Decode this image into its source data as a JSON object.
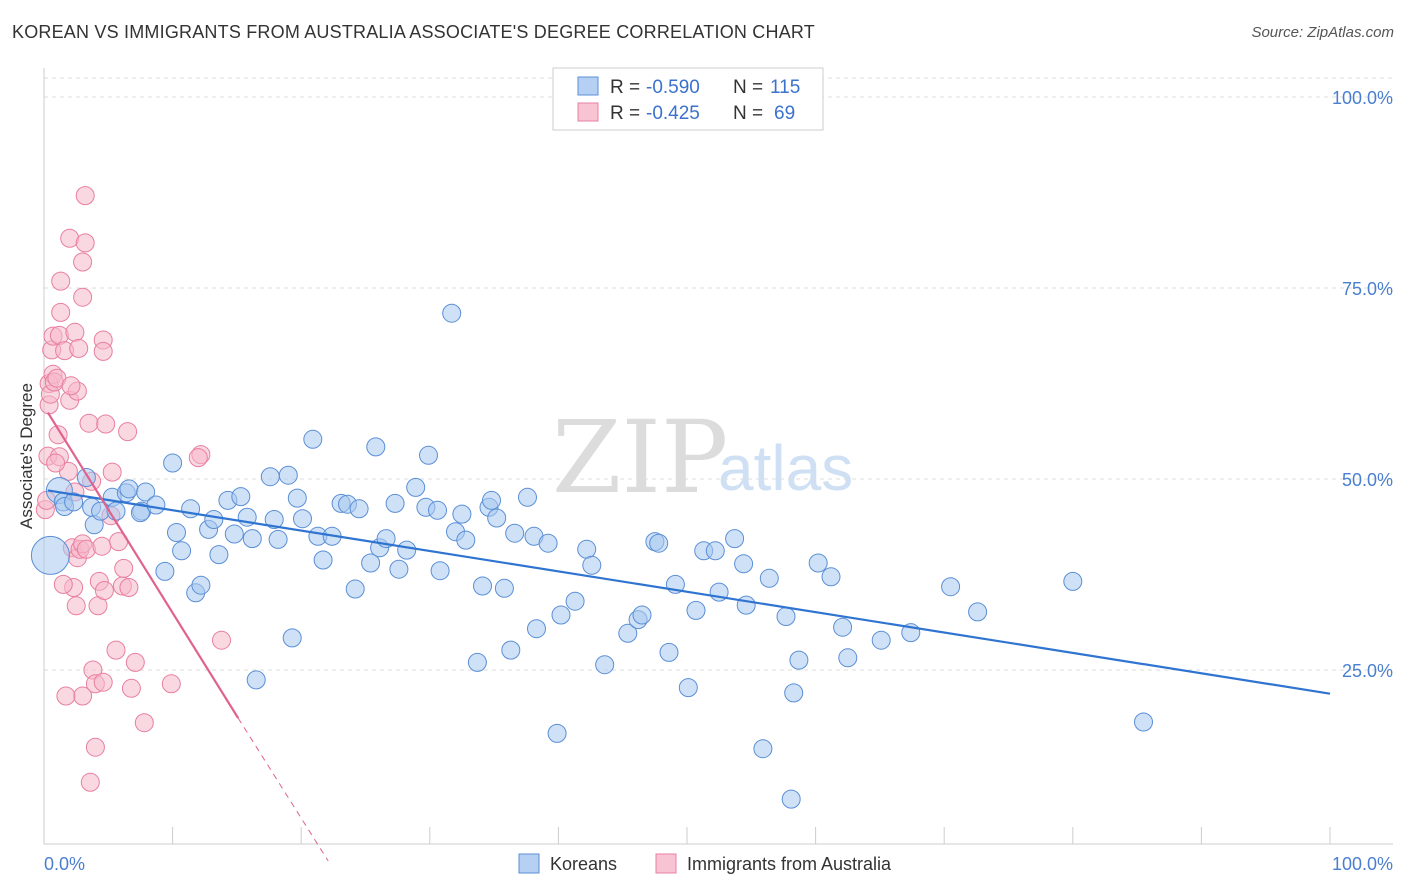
{
  "title": "KOREAN VS IMMIGRANTS FROM AUSTRALIA ASSOCIATE'S DEGREE CORRELATION CHART",
  "source": "Source: ZipAtlas.com",
  "watermark": {
    "zip": "ZIP",
    "atlas": "atlas"
  },
  "colors": {
    "koreans_fill": "#a8c8ef",
    "koreans_stroke": "#5b8fd6",
    "koreans_line": "#2f74d0",
    "australia_fill": "#f6b8cb",
    "australia_stroke": "#e87fa0",
    "australia_line": "#e0628e",
    "tick_text": "#4a7fd0",
    "grid": "#dddddd"
  },
  "legend": {
    "rows": [
      {
        "r_label": "R = ",
        "r_value": "-0.590",
        "n_label": "N = ",
        "n_value": "115",
        "series": "koreans"
      },
      {
        "r_label": "R = ",
        "r_value": "-0.425",
        "n_label": "N = ",
        "n_value": "69",
        "series": "australia"
      }
    ]
  },
  "bottom_legend": [
    "Koreans",
    "Immigrants from Australia"
  ],
  "chart_data": {
    "type": "scatter",
    "title": "KOREAN VS IMMIGRANTS FROM AUSTRALIA ASSOCIATE'S DEGREE CORRELATION CHART",
    "xlabel": "",
    "ylabel": "Associate's Degree",
    "xlim": [
      0,
      100
    ],
    "ylim": [
      0,
      102.5
    ],
    "x_tick_labels": [
      "0.0%",
      "100.0%"
    ],
    "y_tick_labels": [
      "100.0%",
      "75.0%",
      "50.0%",
      "25.0%"
    ],
    "y_ticks": [
      100,
      75,
      50,
      25
    ],
    "grid": true,
    "series": [
      {
        "name": "Koreans",
        "r": -0.59,
        "n": 115,
        "trend": {
          "x0": 0.3,
          "y0": 48.5,
          "x1": 100,
          "y1": 21.9
        },
        "points": [
          [
            0.5,
            40
          ],
          [
            1.2,
            48.5
          ],
          [
            1.5,
            47
          ],
          [
            1.6,
            46.4
          ],
          [
            2.3,
            47
          ],
          [
            3.3,
            50.2
          ],
          [
            3.7,
            46.3
          ],
          [
            3.9,
            44
          ],
          [
            4.4,
            45.8
          ],
          [
            5.3,
            47.6
          ],
          [
            5.6,
            45.8
          ],
          [
            6.4,
            48.2
          ],
          [
            6.6,
            48.7
          ],
          [
            7.6,
            45.8
          ],
          [
            7.9,
            48.3
          ],
          [
            7.5,
            45.6
          ],
          [
            8.7,
            46.6
          ],
          [
            9.4,
            37.9
          ],
          [
            10,
            52.1
          ],
          [
            10.3,
            43
          ],
          [
            10.7,
            40.6
          ],
          [
            11.4,
            46.1
          ],
          [
            11.8,
            35.1
          ],
          [
            12.2,
            36.1
          ],
          [
            12.8,
            43.4
          ],
          [
            13.2,
            44.7
          ],
          [
            13.6,
            40.1
          ],
          [
            14.3,
            47.2
          ],
          [
            14.8,
            42.8
          ],
          [
            15.3,
            47.7
          ],
          [
            15.8,
            45
          ],
          [
            16.2,
            42.2
          ],
          [
            16.5,
            23.7
          ],
          [
            17.6,
            50.3
          ],
          [
            17.9,
            44.7
          ],
          [
            18.2,
            42.1
          ],
          [
            19,
            50.5
          ],
          [
            19.3,
            29.2
          ],
          [
            19.7,
            47.5
          ],
          [
            20.1,
            44.8
          ],
          [
            20.9,
            55.2
          ],
          [
            21.3,
            42.5
          ],
          [
            21.7,
            39.4
          ],
          [
            22.4,
            42.5
          ],
          [
            23.1,
            46.8
          ],
          [
            23.6,
            46.7
          ],
          [
            24.2,
            35.6
          ],
          [
            24.5,
            46.1
          ],
          [
            25.4,
            39
          ],
          [
            25.8,
            54.2
          ],
          [
            26.1,
            41
          ],
          [
            26.6,
            42.2
          ],
          [
            27.3,
            46.8
          ],
          [
            27.6,
            38.2
          ],
          [
            28.2,
            40.7
          ],
          [
            28.9,
            48.9
          ],
          [
            29.7,
            46.3
          ],
          [
            29.9,
            53.1
          ],
          [
            30.6,
            45.9
          ],
          [
            30.8,
            38
          ],
          [
            31.7,
            71.7
          ],
          [
            32,
            43.1
          ],
          [
            32.5,
            45.4
          ],
          [
            32.8,
            42
          ],
          [
            33.7,
            26
          ],
          [
            34.1,
            36
          ],
          [
            34.6,
            46.3
          ],
          [
            34.8,
            47.2
          ],
          [
            35.2,
            44.9
          ],
          [
            35.8,
            35.7
          ],
          [
            36.3,
            27.6
          ],
          [
            36.6,
            42.9
          ],
          [
            37.6,
            47.6
          ],
          [
            38.1,
            42.5
          ],
          [
            38.3,
            30.4
          ],
          [
            39.2,
            41.6
          ],
          [
            39.9,
            16.7
          ],
          [
            40.2,
            32.2
          ],
          [
            41.3,
            34
          ],
          [
            42.2,
            40.8
          ],
          [
            42.6,
            38.7
          ],
          [
            43.6,
            25.7
          ],
          [
            45.4,
            29.8
          ],
          [
            46.2,
            31.6
          ],
          [
            46.5,
            32.2
          ],
          [
            47.5,
            41.8
          ],
          [
            47.8,
            41.6
          ],
          [
            48.6,
            27.3
          ],
          [
            49.1,
            36.2
          ],
          [
            50.1,
            22.7
          ],
          [
            50.7,
            32.8
          ],
          [
            51.3,
            40.6
          ],
          [
            52.2,
            40.6
          ],
          [
            52.5,
            35.2
          ],
          [
            53.7,
            42.2
          ],
          [
            54.4,
            38.9
          ],
          [
            54.6,
            33.5
          ],
          [
            55.9,
            14.7
          ],
          [
            56.4,
            37
          ],
          [
            57.7,
            32
          ],
          [
            58.3,
            22
          ],
          [
            58.7,
            26.3
          ],
          [
            60.2,
            39
          ],
          [
            61.2,
            37.2
          ],
          [
            62.1,
            30.6
          ],
          [
            62.5,
            26.6
          ],
          [
            65.1,
            28.9
          ],
          [
            67.4,
            29.9
          ],
          [
            70.5,
            35.9
          ],
          [
            72.6,
            32.6
          ],
          [
            80,
            36.6
          ],
          [
            85.5,
            18.2
          ],
          [
            58.1,
            8.1
          ]
        ]
      },
      {
        "name": "Immigrants from Australia",
        "r": -0.425,
        "n": 69,
        "trend": {
          "x0": 0.3,
          "y0": 58.7,
          "x1": 15.1,
          "y1": 18.7,
          "dash_x1": 22.1,
          "dash_y1": 0
        },
        "points": [
          [
            0.1,
            46
          ],
          [
            0.3,
            53
          ],
          [
            0.4,
            59.7
          ],
          [
            0.4,
            62.5
          ],
          [
            0.5,
            61.1
          ],
          [
            0.6,
            66.9
          ],
          [
            0.7,
            63.7
          ],
          [
            0.7,
            68.7
          ],
          [
            0.8,
            62.7
          ],
          [
            1,
            63.2
          ],
          [
            1.2,
            52.9
          ],
          [
            1.2,
            68.8
          ],
          [
            1.3,
            75.9
          ],
          [
            1.3,
            71.8
          ],
          [
            1.6,
            66.8
          ],
          [
            1.9,
            51
          ],
          [
            2,
            81.5
          ],
          [
            2,
            60.3
          ],
          [
            2.2,
            41
          ],
          [
            2.3,
            35.8
          ],
          [
            2.4,
            69.2
          ],
          [
            2.5,
            33.4
          ],
          [
            2.6,
            39.7
          ],
          [
            2.6,
            61.5
          ],
          [
            2.7,
            67.1
          ],
          [
            2.8,
            40.8
          ],
          [
            3,
            73.8
          ],
          [
            3,
            41.5
          ],
          [
            3,
            78.4
          ],
          [
            3,
            21.6
          ],
          [
            3.2,
            80.9
          ],
          [
            3.2,
            87.1
          ],
          [
            3.3,
            40.8
          ],
          [
            3.5,
            57.3
          ],
          [
            3.7,
            49.7
          ],
          [
            3.8,
            25
          ],
          [
            4,
            14.9
          ],
          [
            4,
            23.2
          ],
          [
            4.2,
            33.4
          ],
          [
            4.3,
            36.6
          ],
          [
            4.5,
            41.2
          ],
          [
            4.6,
            68.2
          ],
          [
            4.6,
            66.7
          ],
          [
            4.6,
            23.4
          ],
          [
            4.7,
            35.4
          ],
          [
            4.8,
            57.2
          ],
          [
            5.3,
            50.9
          ],
          [
            5.6,
            27.6
          ],
          [
            5.8,
            41.8
          ],
          [
            6.1,
            36
          ],
          [
            6.2,
            38.3
          ],
          [
            6.5,
            56.2
          ],
          [
            6.6,
            35.8
          ],
          [
            6.8,
            22.6
          ],
          [
            7.1,
            26
          ],
          [
            7.8,
            18.1
          ],
          [
            9.9,
            23.2
          ],
          [
            12.2,
            53.2
          ],
          [
            13.8,
            28.9
          ],
          [
            1.7,
            21.6
          ],
          [
            3.6,
            10.3
          ],
          [
            2.1,
            62.2
          ],
          [
            1.5,
            36.2
          ],
          [
            0.9,
            52.1
          ],
          [
            1.1,
            55.8
          ],
          [
            2.4,
            48.3
          ],
          [
            5.2,
            45.2
          ],
          [
            12,
            52.8
          ],
          [
            0.2,
            47.2
          ]
        ]
      }
    ]
  }
}
